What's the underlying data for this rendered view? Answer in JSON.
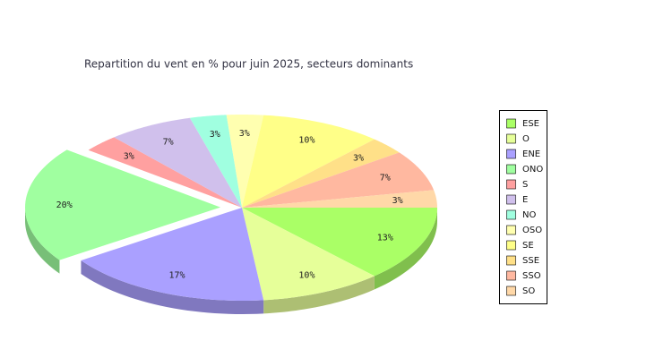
{
  "chart_data": {
    "type": "pie3d",
    "title": "Repartition du vent en % pour juin 2025, secteurs dominants",
    "categories": [
      "ESE",
      "O",
      "ENE",
      "ONO",
      "S",
      "E",
      "NO",
      "OSO",
      "SE",
      "SSE",
      "SSO",
      "SO"
    ],
    "values": [
      13,
      10,
      17,
      20,
      3,
      7,
      3,
      3,
      10,
      3,
      7,
      3
    ],
    "value_labels": [
      "13%",
      "10%",
      "17%",
      "20%",
      "3%",
      "7%",
      "3%",
      "3%",
      "10%",
      "3%",
      "7%",
      "3%"
    ],
    "colors": [
      "#aaff66",
      "#e6ff99",
      "#aaa0ff",
      "#a0ffa0",
      "#ffa0a0",
      "#d0c0ec",
      "#a0ffe0",
      "#ffffb0",
      "#ffff88",
      "#ffe088",
      "#ffb8a0",
      "#ffd8a8"
    ],
    "explode": "ONO",
    "legend": "right"
  }
}
